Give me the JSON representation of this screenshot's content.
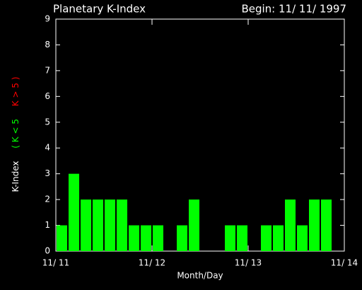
{
  "chart_data": {
    "type": "bar",
    "title": "Planetary K-Index",
    "subtitle": "Begin: 11/ 11/ 1997",
    "xlabel": "Month/Day",
    "ylabel": "K-Index",
    "ylabel_low": "( K < 5",
    "ylabel_high": "K > 5 )",
    "color": "#00ff00",
    "high_color": "#ff0000",
    "x": [
      0,
      3,
      6,
      9,
      12,
      15,
      18,
      21,
      24,
      27,
      30,
      33,
      36,
      39,
      42,
      45,
      48,
      51,
      54,
      57,
      60,
      63,
      66,
      69
    ],
    "values": [
      1,
      3,
      2,
      2,
      2,
      2,
      1,
      1,
      1,
      0,
      1,
      2,
      0,
      0,
      1,
      1,
      0,
      1,
      1,
      2,
      1,
      2,
      2,
      0
    ],
    "xlim": [
      0,
      72
    ],
    "xticks": [
      {
        "value": 0,
        "label": "11/ 11"
      },
      {
        "value": 24,
        "label": "11/ 12"
      },
      {
        "value": 48,
        "label": "11/ 13"
      },
      {
        "value": 72,
        "label": "11/ 14"
      }
    ],
    "ylim": [
      0,
      9
    ],
    "yticks": [
      0,
      1,
      2,
      3,
      4,
      5,
      6,
      7,
      8,
      9
    ]
  }
}
